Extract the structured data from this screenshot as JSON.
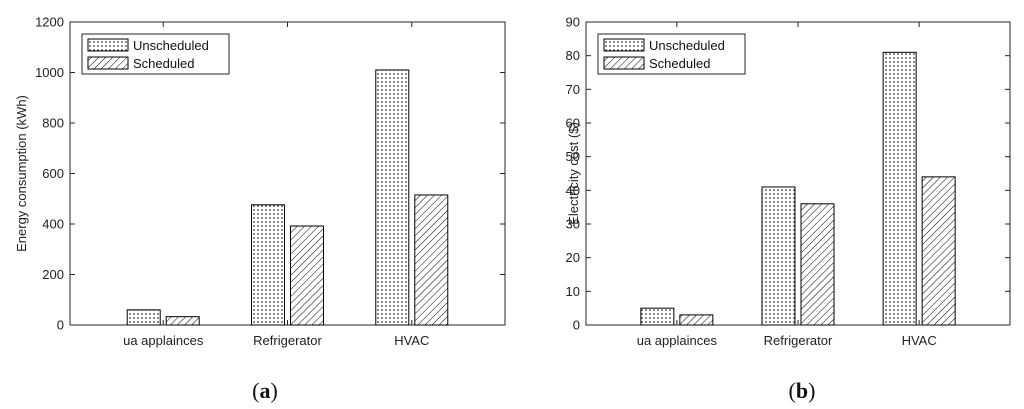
{
  "chart_data": [
    {
      "type": "bar",
      "caption": "(a)",
      "categories": [
        "ua applainces",
        "Refrigerator",
        "HVAC"
      ],
      "series": [
        {
          "name": "Unscheduled",
          "values": [
            60,
            476,
            1010
          ]
        },
        {
          "name": "Scheduled",
          "values": [
            33,
            392,
            515
          ]
        }
      ],
      "ylabel": "Energy consumption (kWh)",
      "ylim": [
        0,
        1200
      ],
      "yticks": [
        0,
        200,
        400,
        600,
        800,
        1000,
        1200
      ],
      "legend": "top-left",
      "grid": false
    },
    {
      "type": "bar",
      "caption": "(b)",
      "categories": [
        "ua applainces",
        "Refrigerator",
        "HVAC"
      ],
      "series": [
        {
          "name": "Unscheduled",
          "values": [
            5,
            41,
            81
          ]
        },
        {
          "name": "Scheduled",
          "values": [
            3,
            36,
            44
          ]
        }
      ],
      "ylabel": "Electricity cost ($)",
      "ylim": [
        0,
        90
      ],
      "yticks": [
        0,
        10,
        20,
        30,
        40,
        50,
        60,
        70,
        80,
        90
      ],
      "legend": "top-left",
      "grid": false
    }
  ]
}
